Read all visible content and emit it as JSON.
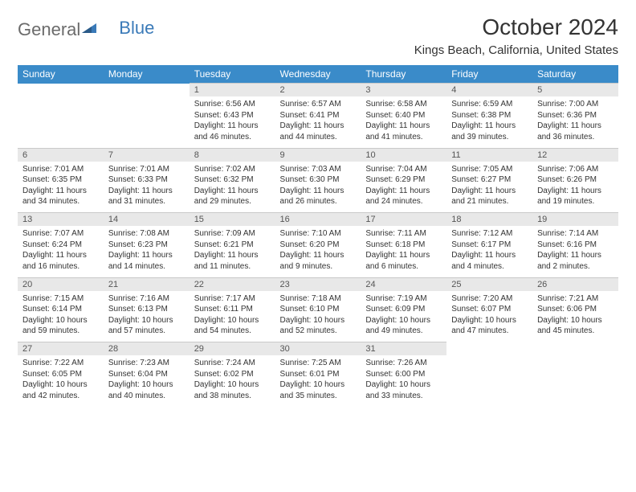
{
  "logo": {
    "text_gray": "General",
    "text_blue": "Blue"
  },
  "title": "October 2024",
  "location": "Kings Beach, California, United States",
  "colors": {
    "header_bg": "#3a8bc9",
    "header_text": "#ffffff",
    "daynum_bg": "#e8e8e8",
    "daynum_text": "#555555",
    "body_text": "#333333",
    "logo_gray": "#6b6b6b",
    "logo_blue": "#3a7ab8"
  },
  "weekdays": [
    "Sunday",
    "Monday",
    "Tuesday",
    "Wednesday",
    "Thursday",
    "Friday",
    "Saturday"
  ],
  "weeks": [
    [
      null,
      null,
      {
        "n": "1",
        "sunrise": "6:56 AM",
        "sunset": "6:43 PM",
        "daylight": "11 hours and 46 minutes."
      },
      {
        "n": "2",
        "sunrise": "6:57 AM",
        "sunset": "6:41 PM",
        "daylight": "11 hours and 44 minutes."
      },
      {
        "n": "3",
        "sunrise": "6:58 AM",
        "sunset": "6:40 PM",
        "daylight": "11 hours and 41 minutes."
      },
      {
        "n": "4",
        "sunrise": "6:59 AM",
        "sunset": "6:38 PM",
        "daylight": "11 hours and 39 minutes."
      },
      {
        "n": "5",
        "sunrise": "7:00 AM",
        "sunset": "6:36 PM",
        "daylight": "11 hours and 36 minutes."
      }
    ],
    [
      {
        "n": "6",
        "sunrise": "7:01 AM",
        "sunset": "6:35 PM",
        "daylight": "11 hours and 34 minutes."
      },
      {
        "n": "7",
        "sunrise": "7:01 AM",
        "sunset": "6:33 PM",
        "daylight": "11 hours and 31 minutes."
      },
      {
        "n": "8",
        "sunrise": "7:02 AM",
        "sunset": "6:32 PM",
        "daylight": "11 hours and 29 minutes."
      },
      {
        "n": "9",
        "sunrise": "7:03 AM",
        "sunset": "6:30 PM",
        "daylight": "11 hours and 26 minutes."
      },
      {
        "n": "10",
        "sunrise": "7:04 AM",
        "sunset": "6:29 PM",
        "daylight": "11 hours and 24 minutes."
      },
      {
        "n": "11",
        "sunrise": "7:05 AM",
        "sunset": "6:27 PM",
        "daylight": "11 hours and 21 minutes."
      },
      {
        "n": "12",
        "sunrise": "7:06 AM",
        "sunset": "6:26 PM",
        "daylight": "11 hours and 19 minutes."
      }
    ],
    [
      {
        "n": "13",
        "sunrise": "7:07 AM",
        "sunset": "6:24 PM",
        "daylight": "11 hours and 16 minutes."
      },
      {
        "n": "14",
        "sunrise": "7:08 AM",
        "sunset": "6:23 PM",
        "daylight": "11 hours and 14 minutes."
      },
      {
        "n": "15",
        "sunrise": "7:09 AM",
        "sunset": "6:21 PM",
        "daylight": "11 hours and 11 minutes."
      },
      {
        "n": "16",
        "sunrise": "7:10 AM",
        "sunset": "6:20 PM",
        "daylight": "11 hours and 9 minutes."
      },
      {
        "n": "17",
        "sunrise": "7:11 AM",
        "sunset": "6:18 PM",
        "daylight": "11 hours and 6 minutes."
      },
      {
        "n": "18",
        "sunrise": "7:12 AM",
        "sunset": "6:17 PM",
        "daylight": "11 hours and 4 minutes."
      },
      {
        "n": "19",
        "sunrise": "7:14 AM",
        "sunset": "6:16 PM",
        "daylight": "11 hours and 2 minutes."
      }
    ],
    [
      {
        "n": "20",
        "sunrise": "7:15 AM",
        "sunset": "6:14 PM",
        "daylight": "10 hours and 59 minutes."
      },
      {
        "n": "21",
        "sunrise": "7:16 AM",
        "sunset": "6:13 PM",
        "daylight": "10 hours and 57 minutes."
      },
      {
        "n": "22",
        "sunrise": "7:17 AM",
        "sunset": "6:11 PM",
        "daylight": "10 hours and 54 minutes."
      },
      {
        "n": "23",
        "sunrise": "7:18 AM",
        "sunset": "6:10 PM",
        "daylight": "10 hours and 52 minutes."
      },
      {
        "n": "24",
        "sunrise": "7:19 AM",
        "sunset": "6:09 PM",
        "daylight": "10 hours and 49 minutes."
      },
      {
        "n": "25",
        "sunrise": "7:20 AM",
        "sunset": "6:07 PM",
        "daylight": "10 hours and 47 minutes."
      },
      {
        "n": "26",
        "sunrise": "7:21 AM",
        "sunset": "6:06 PM",
        "daylight": "10 hours and 45 minutes."
      }
    ],
    [
      {
        "n": "27",
        "sunrise": "7:22 AM",
        "sunset": "6:05 PM",
        "daylight": "10 hours and 42 minutes."
      },
      {
        "n": "28",
        "sunrise": "7:23 AM",
        "sunset": "6:04 PM",
        "daylight": "10 hours and 40 minutes."
      },
      {
        "n": "29",
        "sunrise": "7:24 AM",
        "sunset": "6:02 PM",
        "daylight": "10 hours and 38 minutes."
      },
      {
        "n": "30",
        "sunrise": "7:25 AM",
        "sunset": "6:01 PM",
        "daylight": "10 hours and 35 minutes."
      },
      {
        "n": "31",
        "sunrise": "7:26 AM",
        "sunset": "6:00 PM",
        "daylight": "10 hours and 33 minutes."
      },
      null,
      null
    ]
  ],
  "labels": {
    "sunrise": "Sunrise:",
    "sunset": "Sunset:",
    "daylight": "Daylight:"
  }
}
